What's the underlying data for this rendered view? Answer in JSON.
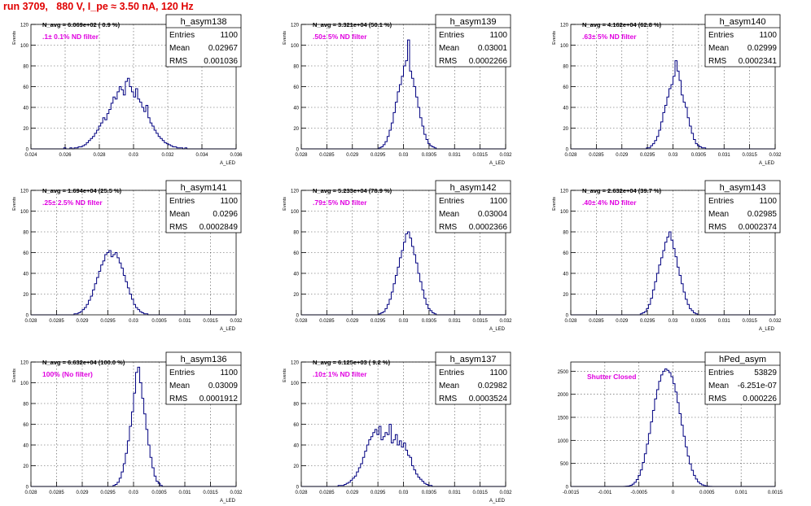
{
  "page": {
    "title": "run 3709,   880 V, I_pe ≈ 3.50 nA, 120 Hz"
  },
  "colors": {
    "hist_line": "#000080",
    "note_text": "#e000e0",
    "title_text": "#e00000",
    "frame": "#000000",
    "grid": "#000000"
  },
  "chart_data": [
    {
      "type": "bar",
      "name": "h_asym138",
      "navg": "N_avg = 6.069e+02 ( 0.9 %)",
      "note": ".1± 0.1% ND filter",
      "stats": {
        "entries": "1100",
        "mean": "0.02967",
        "rms": "0.001036"
      },
      "xlabel": "A_LED",
      "ylabel": "Events",
      "xlim": [
        0.024,
        0.036
      ],
      "ylim": [
        0,
        120
      ],
      "xticks": [
        "0.024",
        "0.026",
        "0.028",
        "0.03",
        "0.032",
        "0.034",
        "0.036"
      ],
      "yticks": [
        "0",
        "20",
        "40",
        "60",
        "80",
        "100",
        "120"
      ],
      "values": [
        0,
        0,
        0,
        0,
        0,
        0,
        0,
        0,
        0,
        0,
        0,
        0,
        0,
        0,
        0,
        0,
        1,
        0,
        0,
        1,
        0,
        1,
        1,
        2,
        2,
        3,
        4,
        6,
        8,
        10,
        12,
        15,
        18,
        22,
        25,
        30,
        28,
        34,
        38,
        44,
        50,
        48,
        55,
        60,
        57,
        52,
        65,
        68,
        60,
        55,
        50,
        58,
        48,
        45,
        40,
        36,
        42,
        30,
        25,
        22,
        18,
        15,
        12,
        10,
        8,
        6,
        5,
        4,
        3,
        2,
        2,
        1,
        1,
        1,
        0,
        1,
        0,
        0,
        0,
        0,
        0,
        0,
        0,
        0,
        0,
        0,
        0,
        0,
        0,
        0,
        0,
        0,
        0,
        0,
        0,
        0,
        0,
        0,
        0,
        0
      ]
    },
    {
      "type": "bar",
      "name": "h_asym139",
      "navg": "N_avg = 3.321e+04 (50.1 %)",
      "note": ".50± 5% ND filter",
      "stats": {
        "entries": "1100",
        "mean": "0.03001",
        "rms": "0.0002266"
      },
      "xlabel": "A_LED",
      "ylabel": "Events",
      "xlim": [
        0.028,
        0.032
      ],
      "ylim": [
        0,
        120
      ],
      "xticks": [
        "0.028",
        "0.0285",
        "0.029",
        "0.0295",
        "0.03",
        "0.0305",
        "0.031",
        "0.0315",
        "0.032"
      ],
      "yticks": [
        "0",
        "20",
        "40",
        "60",
        "80",
        "100",
        "120"
      ],
      "values": [
        0,
        0,
        0,
        0,
        0,
        0,
        0,
        0,
        0,
        0,
        0,
        0,
        0,
        0,
        0,
        0,
        0,
        0,
        0,
        0,
        0,
        0,
        0,
        0,
        0,
        0,
        0,
        0,
        0,
        0,
        0,
        0,
        0,
        0,
        0,
        0,
        0,
        0,
        1,
        2,
        4,
        7,
        12,
        18,
        25,
        35,
        45,
        55,
        62,
        70,
        80,
        85,
        105,
        75,
        68,
        60,
        50,
        40,
        30,
        22,
        14,
        9,
        5,
        3,
        2,
        1,
        0,
        0,
        0,
        0,
        0,
        0,
        0,
        0,
        0,
        0,
        0,
        0,
        0,
        0,
        0,
        0,
        0,
        0,
        0,
        0,
        0,
        0,
        0,
        0,
        0,
        0,
        0,
        0,
        0,
        0,
        0,
        0,
        0,
        0
      ]
    },
    {
      "type": "bar",
      "name": "h_asym140",
      "navg": "N_avg = 4.162e+04 (62.8 %)",
      "note": ".63± 5% ND filter",
      "stats": {
        "entries": "1100",
        "mean": "0.02999",
        "rms": "0.0002341"
      },
      "xlabel": "A_LED",
      "ylabel": "Events",
      "xlim": [
        0.028,
        0.032
      ],
      "ylim": [
        0,
        120
      ],
      "xticks": [
        "0.028",
        "0.0285",
        "0.029",
        "0.0295",
        "0.03",
        "0.0305",
        "0.031",
        "0.0315",
        "0.032"
      ],
      "yticks": [
        "0",
        "20",
        "40",
        "60",
        "80",
        "100",
        "120"
      ],
      "values": [
        0,
        0,
        0,
        0,
        0,
        0,
        0,
        0,
        0,
        0,
        0,
        0,
        0,
        0,
        0,
        0,
        0,
        0,
        0,
        0,
        0,
        0,
        0,
        0,
        0,
        0,
        0,
        0,
        0,
        0,
        0,
        0,
        0,
        0,
        0,
        0,
        0,
        1,
        1,
        3,
        5,
        8,
        12,
        18,
        26,
        35,
        42,
        50,
        58,
        62,
        70,
        85,
        75,
        66,
        52,
        45,
        40,
        30,
        22,
        15,
        9,
        5,
        3,
        2,
        1,
        1,
        0,
        0,
        0,
        0,
        0,
        0,
        0,
        0,
        0,
        0,
        0,
        0,
        0,
        0,
        0,
        0,
        0,
        0,
        0,
        0,
        0,
        0,
        0,
        0,
        0,
        0,
        0,
        0,
        0,
        0,
        0,
        0,
        0,
        0
      ]
    },
    {
      "type": "bar",
      "name": "h_asym141",
      "navg": "N_avg = 1.694e+04 (25.5 %)",
      "note": ".25± 2.5% ND filter",
      "stats": {
        "entries": "1100",
        "mean": "0.0296",
        "rms": "0.0002849"
      },
      "xlabel": "A_LED",
      "ylabel": "Events",
      "xlim": [
        0.028,
        0.032
      ],
      "ylim": [
        0,
        120
      ],
      "xticks": [
        "0.028",
        "0.0285",
        "0.029",
        "0.0295",
        "0.03",
        "0.0305",
        "0.031",
        "0.0315",
        "0.032"
      ],
      "yticks": [
        "0",
        "20",
        "40",
        "60",
        "80",
        "100",
        "120"
      ],
      "values": [
        0,
        0,
        0,
        0,
        0,
        0,
        0,
        0,
        0,
        0,
        0,
        0,
        0,
        0,
        0,
        0,
        0,
        0,
        0,
        0,
        0,
        1,
        1,
        2,
        3,
        5,
        7,
        10,
        14,
        18,
        24,
        30,
        36,
        42,
        48,
        52,
        58,
        60,
        62,
        56,
        58,
        60,
        55,
        50,
        45,
        38,
        32,
        26,
        20,
        15,
        10,
        7,
        5,
        3,
        2,
        1,
        1,
        0,
        0,
        0,
        0,
        0,
        0,
        0,
        0,
        0,
        0,
        0,
        0,
        0,
        0,
        0,
        0,
        0,
        0,
        0,
        0,
        0,
        0,
        0,
        0,
        0,
        0,
        0,
        0,
        0,
        0,
        0,
        0,
        0,
        0,
        0,
        0,
        0,
        0,
        0,
        0,
        0,
        0,
        0
      ]
    },
    {
      "type": "bar",
      "name": "h_asym142",
      "navg": "N_avg = 5.233e+04 (78.9 %)",
      "note": ".79± 5% ND filter",
      "stats": {
        "entries": "1100",
        "mean": "0.03004",
        "rms": "0.0002366"
      },
      "xlabel": "A_LED",
      "ylabel": "Events",
      "xlim": [
        0.028,
        0.032
      ],
      "ylim": [
        0,
        120
      ],
      "xticks": [
        "0.028",
        "0.0285",
        "0.029",
        "0.0295",
        "0.03",
        "0.0305",
        "0.031",
        "0.0315",
        "0.032"
      ],
      "yticks": [
        "0",
        "20",
        "40",
        "60",
        "80",
        "100",
        "120"
      ],
      "values": [
        0,
        0,
        0,
        0,
        0,
        0,
        0,
        0,
        0,
        0,
        0,
        0,
        0,
        0,
        0,
        0,
        0,
        0,
        0,
        0,
        0,
        0,
        0,
        0,
        0,
        0,
        0,
        0,
        0,
        0,
        0,
        0,
        0,
        0,
        0,
        0,
        0,
        0,
        1,
        2,
        3,
        6,
        10,
        15,
        22,
        30,
        38,
        46,
        55,
        62,
        70,
        78,
        80,
        74,
        66,
        58,
        50,
        40,
        32,
        24,
        16,
        10,
        6,
        4,
        2,
        1,
        0,
        0,
        0,
        0,
        0,
        0,
        0,
        0,
        0,
        0,
        0,
        0,
        0,
        0,
        0,
        0,
        0,
        0,
        0,
        0,
        0,
        0,
        0,
        0,
        0,
        0,
        0,
        0,
        0,
        0,
        0,
        0,
        0,
        0
      ]
    },
    {
      "type": "bar",
      "name": "h_asym143",
      "navg": "N_avg = 2.632e+04 (39.7 %)",
      "note": ".40± 4% ND filter",
      "stats": {
        "entries": "1100",
        "mean": "0.02985",
        "rms": "0.0002374"
      },
      "xlabel": "A_LED",
      "ylabel": "Events",
      "xlim": [
        0.028,
        0.032
      ],
      "ylim": [
        0,
        120
      ],
      "xticks": [
        "0.028",
        "0.0285",
        "0.029",
        "0.0295",
        "0.03",
        "0.0305",
        "0.031",
        "0.0315",
        "0.032"
      ],
      "yticks": [
        "0",
        "20",
        "40",
        "60",
        "80",
        "100",
        "120"
      ],
      "values": [
        0,
        0,
        0,
        0,
        0,
        0,
        0,
        0,
        0,
        0,
        0,
        0,
        0,
        0,
        0,
        0,
        0,
        0,
        0,
        0,
        0,
        0,
        0,
        0,
        0,
        0,
        0,
        0,
        0,
        0,
        0,
        0,
        0,
        0,
        1,
        2,
        3,
        6,
        10,
        16,
        24,
        32,
        40,
        48,
        55,
        62,
        70,
        75,
        80,
        72,
        64,
        56,
        46,
        38,
        30,
        22,
        15,
        10,
        6,
        4,
        2,
        1,
        0,
        0,
        0,
        0,
        0,
        0,
        0,
        0,
        0,
        0,
        0,
        0,
        0,
        0,
        0,
        0,
        0,
        0,
        0,
        0,
        0,
        0,
        0,
        0,
        0,
        0,
        0,
        0,
        0,
        0,
        0,
        0,
        0,
        0,
        0,
        0,
        0,
        0
      ]
    },
    {
      "type": "bar",
      "name": "h_asym136",
      "navg": "N_avg = 6.632e+04 (100.0 %)",
      "note": "100% (No filter)",
      "stats": {
        "entries": "1100",
        "mean": "0.03009",
        "rms": "0.0001912"
      },
      "xlabel": "A_LED",
      "ylabel": "Events",
      "xlim": [
        0.028,
        0.032
      ],
      "ylim": [
        0,
        120
      ],
      "xticks": [
        "0.028",
        "0.0285",
        "0.029",
        "0.0295",
        "0.03",
        "0.0305",
        "0.031",
        "0.0315",
        "0.032"
      ],
      "yticks": [
        "0",
        "20",
        "40",
        "60",
        "80",
        "100",
        "120"
      ],
      "values": [
        0,
        0,
        0,
        0,
        0,
        0,
        0,
        0,
        0,
        0,
        0,
        0,
        0,
        0,
        0,
        0,
        0,
        0,
        0,
        0,
        0,
        0,
        0,
        0,
        0,
        0,
        0,
        0,
        0,
        0,
        0,
        0,
        0,
        0,
        0,
        0,
        0,
        0,
        0,
        0,
        1,
        2,
        4,
        8,
        14,
        22,
        32,
        44,
        58,
        72,
        90,
        110,
        115,
        100,
        85,
        70,
        55,
        40,
        28,
        18,
        10,
        5,
        3,
        1,
        0,
        0,
        0,
        0,
        0,
        0,
        0,
        0,
        0,
        0,
        0,
        0,
        0,
        0,
        0,
        0,
        0,
        0,
        0,
        0,
        0,
        0,
        0,
        0,
        0,
        0,
        0,
        0,
        0,
        0,
        0,
        0,
        0,
        0,
        0,
        0
      ]
    },
    {
      "type": "bar",
      "name": "h_asym137",
      "navg": "N_avg = 6.125e+03 ( 9.2 %)",
      "note": ".10± 1% ND filter",
      "stats": {
        "entries": "1100",
        "mean": "0.02982",
        "rms": "0.0003524"
      },
      "xlabel": "A_LED",
      "ylabel": "Events",
      "xlim": [
        0.028,
        0.032
      ],
      "ylim": [
        0,
        120
      ],
      "xticks": [
        "0.028",
        "0.0285",
        "0.029",
        "0.0295",
        "0.03",
        "0.0305",
        "0.031",
        "0.0315",
        "0.032"
      ],
      "yticks": [
        "0",
        "20",
        "40",
        "60",
        "80",
        "100",
        "120"
      ],
      "values": [
        0,
        0,
        0,
        0,
        0,
        0,
        0,
        0,
        0,
        0,
        0,
        0,
        0,
        0,
        0,
        0,
        0,
        0,
        1,
        1,
        1,
        2,
        3,
        4,
        6,
        8,
        10,
        14,
        18,
        22,
        28,
        34,
        40,
        45,
        48,
        52,
        55,
        50,
        58,
        45,
        48,
        52,
        50,
        60,
        42,
        45,
        50,
        40,
        44,
        38,
        42,
        35,
        30,
        28,
        20,
        16,
        12,
        9,
        7,
        5,
        3,
        2,
        1,
        1,
        0,
        0,
        0,
        0,
        0,
        0,
        0,
        0,
        0,
        0,
        0,
        0,
        0,
        0,
        0,
        0,
        0,
        0,
        0,
        0,
        0,
        0,
        0,
        0,
        0,
        0,
        0,
        0,
        0,
        0,
        0,
        0,
        0,
        0,
        0,
        0
      ]
    },
    {
      "type": "bar",
      "name": "hPed_asym",
      "navg": "",
      "note": "Shutter Closed",
      "stats": {
        "entries": "53829",
        "mean": "-6.251e-07",
        "rms": "0.000226"
      },
      "xlabel": "",
      "ylabel": "",
      "xlim": [
        -0.0015,
        0.0015
      ],
      "ylim": [
        0,
        2700
      ],
      "xticks": [
        "-0.0015",
        "-0.001",
        "-0.0005",
        "0",
        "0.0005",
        "0.001",
        "0.0015"
      ],
      "yticks": [
        "0",
        "500",
        "1000",
        "1500",
        "2000",
        "2500"
      ],
      "values": [
        0,
        0,
        0,
        0,
        0,
        0,
        0,
        0,
        0,
        0,
        0,
        0,
        0,
        0,
        0,
        0,
        0,
        0,
        0,
        0,
        0,
        0,
        0,
        0,
        0,
        1,
        3,
        6,
        12,
        25,
        50,
        90,
        150,
        240,
        360,
        520,
        710,
        920,
        1150,
        1400,
        1650,
        1900,
        2100,
        2280,
        2420,
        2500,
        2550,
        2520,
        2470,
        2380,
        2230,
        2050,
        1820,
        1580,
        1330,
        1090,
        860,
        660,
        490,
        350,
        240,
        160,
        100,
        60,
        35,
        20,
        10,
        5,
        2,
        1,
        0,
        0,
        0,
        0,
        0,
        0,
        0,
        0,
        0,
        0,
        0,
        0,
        0,
        0,
        0,
        0,
        0,
        0,
        0,
        0,
        0,
        0,
        0,
        0,
        0,
        0,
        0,
        0,
        0,
        0
      ]
    }
  ]
}
